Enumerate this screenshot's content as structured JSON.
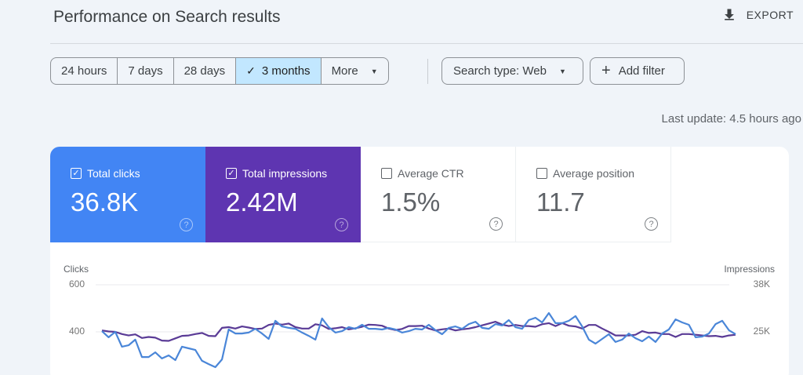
{
  "header": {
    "title": "Performance on Search results",
    "export_label": "EXPORT"
  },
  "date_range": {
    "options": [
      {
        "label": "24 hours",
        "active": false
      },
      {
        "label": "7 days",
        "active": false
      },
      {
        "label": "28 days",
        "active": false
      },
      {
        "label": "3 months",
        "active": true
      },
      {
        "label": "More",
        "active": false,
        "dropdown": true
      }
    ]
  },
  "filters": {
    "search_type_label": "Search type: Web",
    "add_filter_label": "Add filter"
  },
  "last_update": "Last update: 4.5 hours ago",
  "metrics": [
    {
      "label": "Total clicks",
      "value": "36.8K",
      "checked": true,
      "color": "#4285f4"
    },
    {
      "label": "Total impressions",
      "value": "2.42M",
      "checked": true,
      "color": "#5e35b1"
    },
    {
      "label": "Average CTR",
      "value": "1.5%",
      "checked": false
    },
    {
      "label": "Average position",
      "value": "11.7",
      "checked": false
    }
  ],
  "chart": {
    "left_axis_title": "Clicks",
    "right_axis_title": "Impressions",
    "left_ticks": [
      "600",
      "400"
    ],
    "right_ticks": [
      "38K",
      "25K"
    ]
  },
  "chart_data": {
    "type": "line",
    "title": "Performance on Search results",
    "xlabel": "",
    "ylabel": "Clicks",
    "y2label": "Impressions",
    "ylim_visible": [
      300,
      600
    ],
    "y2lim_visible": [
      "~20K",
      "38K"
    ],
    "grid": true,
    "legend": [
      "Total clicks",
      "Total impressions"
    ],
    "series": [
      {
        "name": "Clicks",
        "color": "#4a86d8",
        "axis": "left",
        "values": [
          403,
          377,
          400,
          337,
          343,
          367,
          293,
          293,
          313,
          287,
          300,
          280,
          337,
          330,
          323,
          277,
          263,
          250,
          283,
          410,
          393,
          393,
          397,
          413,
          393,
          370,
          447,
          423,
          417,
          413,
          397,
          383,
          367,
          457,
          420,
          397,
          403,
          420,
          413,
          430,
          413,
          413,
          410,
          417,
          410,
          397,
          403,
          413,
          410,
          430,
          407,
          390,
          417,
          423,
          413,
          433,
          443,
          417,
          413,
          433,
          427,
          450,
          420,
          413,
          450,
          460,
          440,
          480,
          437,
          437,
          447,
          467,
          423,
          367,
          350,
          370,
          390,
          357,
          367,
          393,
          373,
          360,
          380,
          357,
          393,
          410,
          453,
          440,
          430,
          377,
          380,
          393,
          433,
          447,
          407,
          390
        ],
        "pixel_y_note": "approximate, y=363 ↔ 600 clicks, y=423 ↔ 400 clicks"
      },
      {
        "name": "Impressions",
        "color": "#5a3b96",
        "axis": "right",
        "values_k": [
          25.4,
          25.1,
          25.0,
          24.4,
          24.0,
          24.3,
          23.3,
          23.6,
          23.4,
          22.6,
          22.5,
          23.2,
          23.9,
          24.0,
          24.4,
          24.7,
          23.9,
          23.8,
          26.1,
          26.3,
          25.9,
          26.5,
          26.2,
          25.8,
          25.9,
          26.9,
          27.3,
          27.0,
          27.3,
          26.3,
          25.9,
          25.9,
          27.1,
          26.8,
          25.8,
          26.0,
          26.3,
          25.7,
          26.0,
          26.4,
          27.0,
          26.9,
          26.7,
          25.9,
          25.5,
          25.8,
          26.6,
          26.6,
          26.7,
          25.9,
          25.4,
          25.7,
          25.9,
          25.4,
          25.7,
          25.9,
          26.3,
          26.8,
          27.3,
          27.8,
          27.0,
          26.6,
          26.9,
          26.6,
          26.6,
          26.4,
          27.1,
          27.4,
          26.6,
          27.4,
          26.7,
          26.5,
          25.9,
          26.9,
          26.9,
          25.9,
          25.0,
          24.0,
          24.0,
          24.0,
          24.2,
          25.2,
          24.7,
          24.8,
          24.4,
          24.4,
          23.6,
          24.4,
          24.4,
          24.2,
          24.0,
          23.8,
          23.9,
          23.6,
          24.0,
          24.2
        ],
        "pixel_y_note": "approximate, y=363 ↔ 38K, y=423 ↔ 25K"
      }
    ]
  }
}
